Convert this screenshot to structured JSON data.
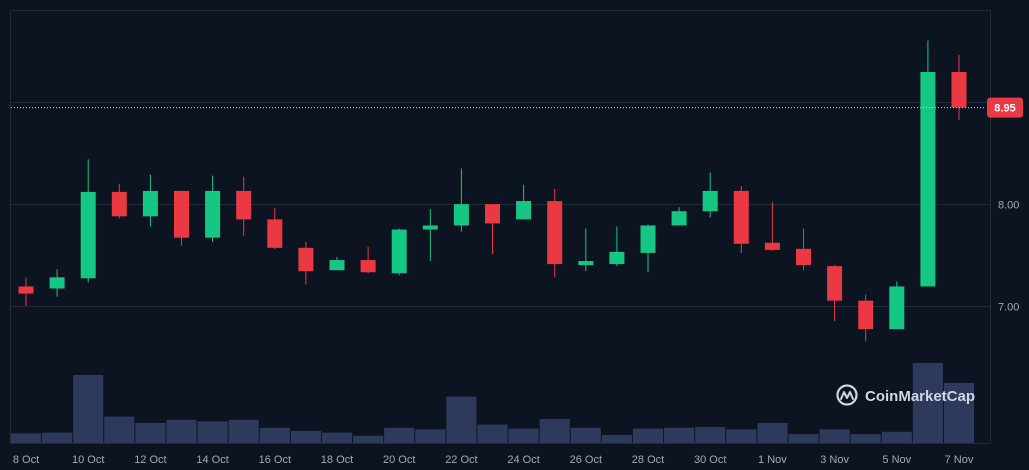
{
  "chart_data": {
    "type": "candlestick",
    "x_labels": [
      "8 Oct",
      "10 Oct",
      "12 Oct",
      "14 Oct",
      "16 Oct",
      "18 Oct",
      "20 Oct",
      "22 Oct",
      "24 Oct",
      "26 Oct",
      "28 Oct",
      "30 Oct",
      "1 Nov",
      "3 Nov",
      "5 Nov",
      "7 Nov"
    ],
    "y_ticks": [
      7.0,
      8.0
    ],
    "y_tick_labels": [
      "7.00",
      "8.00"
    ],
    "ylim": [
      5.65,
      9.9
    ],
    "current_price": 8.95,
    "current_price_label": "8.95",
    "candles": [
      {
        "date": "8 Oct",
        "open": 7.19,
        "high": 7.28,
        "low": 7.0,
        "close": 7.12
      },
      {
        "date": "9 Oct",
        "open": 7.17,
        "high": 7.36,
        "low": 7.09,
        "close": 7.28
      },
      {
        "date": "10 Oct",
        "open": 7.27,
        "high": 8.44,
        "low": 7.23,
        "close": 8.12
      },
      {
        "date": "11 Oct",
        "open": 8.12,
        "high": 8.2,
        "low": 7.86,
        "close": 7.88
      },
      {
        "date": "12 Oct",
        "open": 7.88,
        "high": 8.29,
        "low": 7.78,
        "close": 8.13
      },
      {
        "date": "13 Oct",
        "open": 8.13,
        "high": 8.13,
        "low": 7.59,
        "close": 7.67
      },
      {
        "date": "14 Oct",
        "open": 7.67,
        "high": 8.28,
        "low": 7.63,
        "close": 8.13
      },
      {
        "date": "15 Oct",
        "open": 8.13,
        "high": 8.27,
        "low": 7.69,
        "close": 7.85
      },
      {
        "date": "16 Oct",
        "open": 7.85,
        "high": 7.96,
        "low": 7.56,
        "close": 7.57
      },
      {
        "date": "17 Oct",
        "open": 7.57,
        "high": 7.63,
        "low": 7.21,
        "close": 7.34
      },
      {
        "date": "18 Oct",
        "open": 7.35,
        "high": 7.48,
        "low": 7.35,
        "close": 7.45
      },
      {
        "date": "19 Oct",
        "open": 7.45,
        "high": 7.58,
        "low": 7.32,
        "close": 7.33
      },
      {
        "date": "20 Oct",
        "open": 7.32,
        "high": 7.76,
        "low": 7.3,
        "close": 7.75
      },
      {
        "date": "21 Oct",
        "open": 7.75,
        "high": 7.95,
        "low": 7.44,
        "close": 7.79
      },
      {
        "date": "22 Oct",
        "open": 7.79,
        "high": 8.35,
        "low": 7.73,
        "close": 8.0
      },
      {
        "date": "23 Oct",
        "open": 8.0,
        "high": 8.0,
        "low": 7.51,
        "close": 7.81
      },
      {
        "date": "24 Oct",
        "open": 7.85,
        "high": 8.19,
        "low": 7.85,
        "close": 8.03
      },
      {
        "date": "25 Oct",
        "open": 8.03,
        "high": 8.15,
        "low": 7.28,
        "close": 7.41
      },
      {
        "date": "26 Oct",
        "open": 7.4,
        "high": 7.76,
        "low": 7.34,
        "close": 7.44
      },
      {
        "date": "27 Oct",
        "open": 7.41,
        "high": 7.78,
        "low": 7.39,
        "close": 7.53
      },
      {
        "date": "28 Oct",
        "open": 7.52,
        "high": 7.8,
        "low": 7.33,
        "close": 7.79
      },
      {
        "date": "29 Oct",
        "open": 7.79,
        "high": 7.97,
        "low": 7.79,
        "close": 7.93
      },
      {
        "date": "30 Oct",
        "open": 7.93,
        "high": 8.31,
        "low": 7.87,
        "close": 8.13
      },
      {
        "date": "31 Oct",
        "open": 8.13,
        "high": 8.18,
        "low": 7.52,
        "close": 7.61
      },
      {
        "date": "1 Nov",
        "open": 7.62,
        "high": 8.02,
        "low": 7.54,
        "close": 7.55
      },
      {
        "date": "2 Nov",
        "open": 7.56,
        "high": 7.76,
        "low": 7.35,
        "close": 7.4
      },
      {
        "date": "3 Nov",
        "open": 7.39,
        "high": 7.4,
        "low": 6.85,
        "close": 7.05
      },
      {
        "date": "4 Nov",
        "open": 7.05,
        "high": 7.11,
        "low": 6.65,
        "close": 6.77
      },
      {
        "date": "5 Nov",
        "open": 6.77,
        "high": 7.24,
        "low": 6.77,
        "close": 7.19
      },
      {
        "date": "6 Nov",
        "open": 7.19,
        "high": 9.61,
        "low": 7.19,
        "close": 9.3
      },
      {
        "date": "7 Nov",
        "open": 9.3,
        "high": 9.47,
        "low": 8.83,
        "close": 8.95
      }
    ],
    "volume": [
      0.12,
      0.13,
      0.85,
      0.33,
      0.25,
      0.29,
      0.27,
      0.29,
      0.19,
      0.15,
      0.13,
      0.09,
      0.19,
      0.17,
      0.58,
      0.23,
      0.18,
      0.3,
      0.19,
      0.1,
      0.18,
      0.19,
      0.2,
      0.17,
      0.25,
      0.11,
      0.17,
      0.11,
      0.14,
      1.0,
      0.75
    ],
    "colors": {
      "background": "#0d1421",
      "up": "#16c784",
      "down": "#ea3943",
      "volume": "#2e3a5c",
      "grid": "#222a3a",
      "text": "#a1a7bb",
      "price_badge": "#ea3943"
    }
  },
  "watermark": {
    "brand": "CoinMarketCap",
    "icon": "coinmarketcap-logo-icon"
  }
}
